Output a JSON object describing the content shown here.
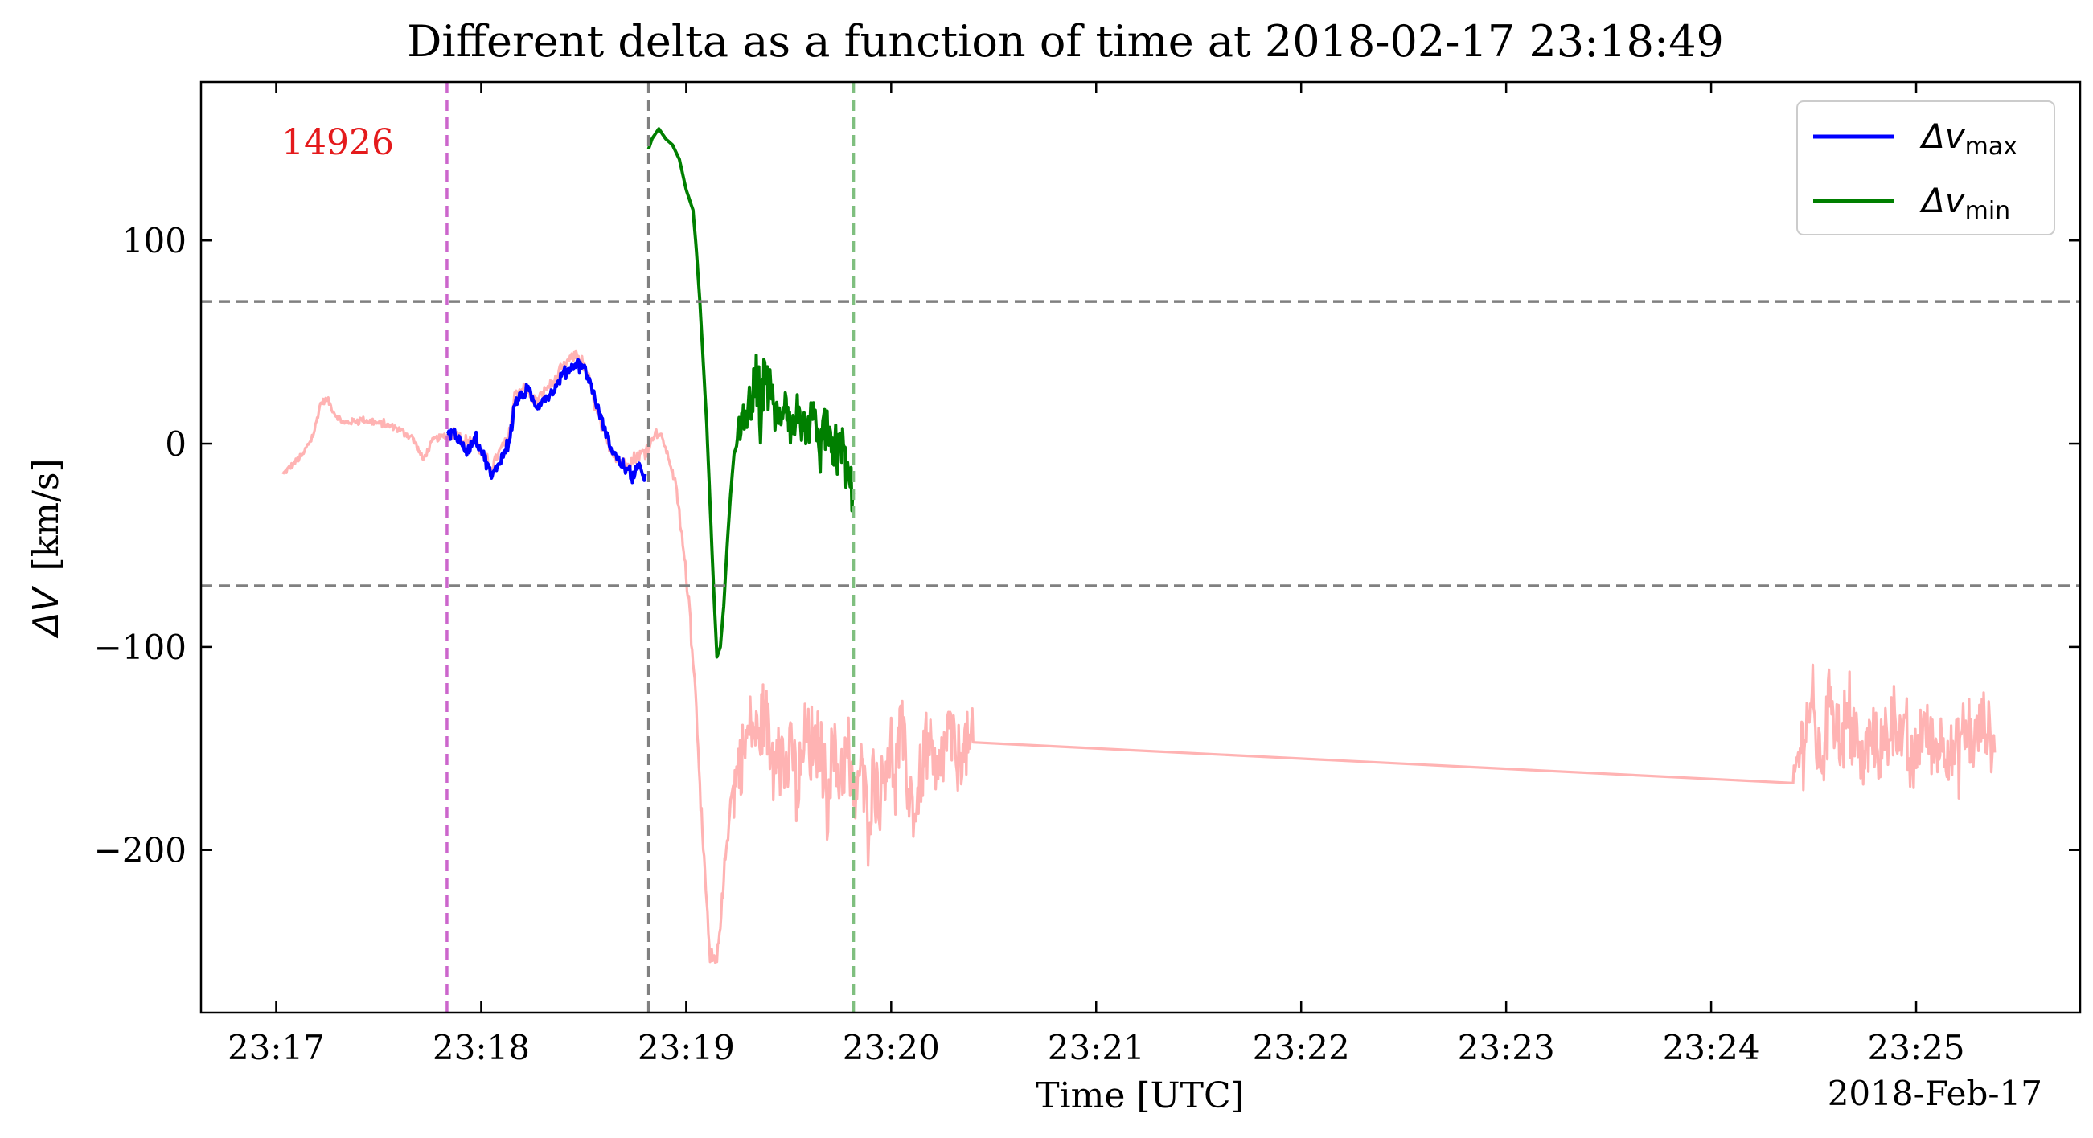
{
  "chart_data": {
    "type": "line",
    "title": "Different delta as a function of time at 2018-02-17 23:18:49",
    "xlabel": "Time [UTC]",
    "ylabel_symbol": "ΔV",
    "ylabel_unit": "[km/s]",
    "date_label": "2018-Feb-17",
    "annotation": {
      "text": "14926",
      "color": "#e41a1c"
    },
    "xlim": [
      "23:16:38",
      "23:25:48"
    ],
    "ylim": [
      -280,
      178
    ],
    "x_ticks": [
      "23:17",
      "23:18",
      "23:19",
      "23:20",
      "23:21",
      "23:22",
      "23:23",
      "23:24",
      "23:25"
    ],
    "y_ticks": [
      -200,
      -100,
      0,
      100
    ],
    "y_tick_labels": [
      "−200",
      "−100",
      "0",
      "100"
    ],
    "hlines": [
      {
        "y": 70,
        "color": "#808080"
      },
      {
        "y": -70,
        "color": "#808080"
      }
    ],
    "vlines": [
      {
        "x": "23:17:50",
        "color": "#cc66cc"
      },
      {
        "x": "23:18:49",
        "color": "#808080"
      },
      {
        "x": "23:19:49",
        "color": "#7fbf7f"
      }
    ],
    "legend": {
      "placement": "top-right",
      "entries": [
        {
          "base": "Δv",
          "sub": "max",
          "color": "#0000ff"
        },
        {
          "base": "Δv",
          "sub": "min",
          "color": "#007f00"
        }
      ]
    },
    "series": [
      {
        "key": "background",
        "color": "#ffb3b3",
        "points": [
          [
            "23:17:02",
            -15
          ],
          [
            "23:17:05",
            -10
          ],
          [
            "23:17:08",
            -5
          ],
          [
            "23:17:11",
            5
          ],
          [
            "23:17:13",
            20
          ],
          [
            "23:17:15",
            22
          ],
          [
            "23:17:17",
            15
          ],
          [
            "23:17:20",
            10
          ],
          [
            "23:17:25",
            12
          ],
          [
            "23:17:30",
            10
          ],
          [
            "23:17:35",
            8
          ],
          [
            "23:17:40",
            3
          ],
          [
            "23:17:43",
            -8
          ],
          [
            "23:17:46",
            2
          ],
          [
            "23:17:50",
            4
          ],
          [
            "23:17:53",
            5
          ],
          [
            "23:17:56",
            0
          ],
          [
            "23:17:58",
            3
          ],
          [
            "23:18:00",
            -5
          ],
          [
            "23:18:03",
            -12
          ],
          [
            "23:18:05",
            -5
          ],
          [
            "23:18:08",
            3
          ],
          [
            "23:18:10",
            25
          ],
          [
            "23:18:13",
            28
          ],
          [
            "23:18:16",
            20
          ],
          [
            "23:18:19",
            27
          ],
          [
            "23:18:22",
            32
          ],
          [
            "23:18:25",
            40
          ],
          [
            "23:18:28",
            44
          ],
          [
            "23:18:31",
            35
          ],
          [
            "23:18:34",
            15
          ],
          [
            "23:18:37",
            0
          ],
          [
            "23:18:40",
            -8
          ],
          [
            "23:18:43",
            -10
          ],
          [
            "23:18:46",
            -6
          ],
          [
            "23:18:49",
            -2
          ],
          [
            "23:18:51",
            6
          ],
          [
            "23:18:53",
            3
          ],
          [
            "23:18:55",
            -8
          ],
          [
            "23:18:57",
            -20
          ],
          [
            "23:18:59",
            -50
          ],
          [
            "23:19:01",
            -80
          ],
          [
            "23:19:03",
            -130
          ],
          [
            "23:19:05",
            -200
          ],
          [
            "23:19:07",
            -255
          ],
          [
            "23:19:09",
            -255
          ],
          [
            "23:19:11",
            -215
          ],
          [
            "23:19:13",
            -175
          ],
          [
            "23:19:15",
            -162
          ],
          [
            "23:19:17",
            -150
          ],
          [
            "23:19:19",
            -138
          ],
          [
            "23:19:21",
            -145
          ],
          [
            "23:19:23",
            -130
          ],
          [
            "23:19:25",
            -155
          ],
          [
            "23:19:27",
            -140
          ],
          [
            "23:19:29",
            -165
          ],
          [
            "23:19:31",
            -150
          ],
          [
            "23:19:33",
            -175
          ],
          [
            "23:19:35",
            -140
          ],
          [
            "23:19:37",
            -158
          ],
          [
            "23:19:39",
            -145
          ],
          [
            "23:19:41",
            -170
          ],
          [
            "23:19:43",
            -150
          ],
          [
            "23:19:45",
            -165
          ],
          [
            "23:19:47",
            -152
          ],
          [
            "23:19:49",
            -178
          ],
          [
            "23:19:51",
            -158
          ],
          [
            "23:19:53",
            -182
          ],
          [
            "23:19:55",
            -162
          ],
          [
            "23:19:57",
            -172
          ],
          [
            "23:19:59",
            -150
          ],
          [
            "23:20:01",
            -163
          ],
          [
            "23:20:03",
            -140
          ],
          [
            "23:20:05",
            -170
          ],
          [
            "23:20:07",
            -182
          ],
          [
            "23:20:09",
            -160
          ],
          [
            "23:20:11",
            -148
          ],
          [
            "23:20:13",
            -170
          ],
          [
            "23:20:15",
            -155
          ],
          [
            "23:20:17",
            -140
          ],
          [
            "23:20:19",
            -158
          ],
          [
            "23:20:21",
            -148
          ],
          [
            "23:20:23",
            -150
          ],
          [
            "23:20:24",
            -147
          ],
          [
            "23:24:24",
            -167
          ],
          [
            "23:24:26",
            -150
          ],
          [
            "23:24:29",
            -128
          ],
          [
            "23:24:32",
            -160
          ],
          [
            "23:24:35",
            -120
          ],
          [
            "23:24:38",
            -148
          ],
          [
            "23:24:41",
            -135
          ],
          [
            "23:24:44",
            -160
          ],
          [
            "23:24:47",
            -142
          ],
          [
            "23:24:50",
            -155
          ],
          [
            "23:24:53",
            -130
          ],
          [
            "23:24:56",
            -145
          ],
          [
            "23:24:59",
            -160
          ],
          [
            "23:25:02",
            -138
          ],
          [
            "23:25:05",
            -150
          ],
          [
            "23:25:08",
            -145
          ],
          [
            "23:25:11",
            -155
          ],
          [
            "23:25:14",
            -140
          ],
          [
            "23:25:17",
            -148
          ],
          [
            "23:25:20",
            -135
          ],
          [
            "23:25:23",
            -152
          ]
        ],
        "noise": [
          [
            "23:17:02",
            "23:17:50",
            2
          ],
          [
            "23:17:50",
            "23:18:49",
            3
          ],
          [
            "23:18:49",
            "23:18:58",
            2
          ],
          [
            "23:18:58",
            "23:19:14",
            5
          ],
          [
            "23:19:14",
            "23:20:24",
            22
          ],
          [
            "23:24:24",
            "23:25:24",
            20
          ]
        ]
      },
      {
        "key": "dv_max",
        "color": "#0000ff",
        "points": [
          [
            "23:17:50",
            5
          ],
          [
            "23:17:52",
            6
          ],
          [
            "23:17:54",
            0
          ],
          [
            "23:17:56",
            -4
          ],
          [
            "23:17:58",
            3
          ],
          [
            "23:18:00",
            -3
          ],
          [
            "23:18:02",
            -10
          ],
          [
            "23:18:03",
            -17
          ],
          [
            "23:18:05",
            -10
          ],
          [
            "23:18:08",
            0
          ],
          [
            "23:18:10",
            20
          ],
          [
            "23:18:12",
            24
          ],
          [
            "23:18:14",
            26
          ],
          [
            "23:18:16",
            18
          ],
          [
            "23:18:18",
            22
          ],
          [
            "23:18:20",
            24
          ],
          [
            "23:18:22",
            28
          ],
          [
            "23:18:24",
            35
          ],
          [
            "23:18:26",
            37
          ],
          [
            "23:18:28",
            40
          ],
          [
            "23:18:30",
            38
          ],
          [
            "23:18:32",
            30
          ],
          [
            "23:18:34",
            18
          ],
          [
            "23:18:36",
            8
          ],
          [
            "23:18:38",
            -2
          ],
          [
            "23:18:40",
            -8
          ],
          [
            "23:18:42",
            -12
          ],
          [
            "23:18:44",
            -16
          ],
          [
            "23:18:46",
            -12
          ],
          [
            "23:18:48",
            -15
          ]
        ],
        "noise": [
          [
            "23:17:50",
            "23:18:48",
            3
          ]
        ]
      },
      {
        "key": "dv_min",
        "color": "#007f00",
        "points": [
          [
            "23:18:49",
            145
          ],
          [
            "23:18:50",
            150
          ],
          [
            "23:18:52",
            155
          ],
          [
            "23:18:54",
            150
          ],
          [
            "23:18:56",
            147
          ],
          [
            "23:18:58",
            140
          ],
          [
            "23:19:00",
            125
          ],
          [
            "23:19:02",
            115
          ],
          [
            "23:19:03",
            95
          ],
          [
            "23:19:04",
            70
          ],
          [
            "23:19:05",
            40
          ],
          [
            "23:19:06",
            10
          ],
          [
            "23:19:07",
            -30
          ],
          [
            "23:19:08",
            -70
          ],
          [
            "23:19:09",
            -105
          ],
          [
            "23:19:10",
            -100
          ],
          [
            "23:19:11",
            -80
          ],
          [
            "23:19:12",
            -50
          ],
          [
            "23:19:13",
            -25
          ],
          [
            "23:19:14",
            -5
          ],
          [
            "23:19:16",
            5
          ],
          [
            "23:19:18",
            15
          ],
          [
            "23:19:20",
            28
          ],
          [
            "23:19:22",
            15
          ],
          [
            "23:19:23",
            40
          ],
          [
            "23:19:25",
            22
          ],
          [
            "23:19:27",
            10
          ],
          [
            "23:19:29",
            25
          ],
          [
            "23:19:31",
            5
          ],
          [
            "23:19:33",
            18
          ],
          [
            "23:19:35",
            0
          ],
          [
            "23:19:37",
            12
          ],
          [
            "23:19:39",
            -5
          ],
          [
            "23:19:41",
            8
          ],
          [
            "23:19:43",
            -10
          ],
          [
            "23:19:45",
            5
          ],
          [
            "23:19:47",
            -15
          ],
          [
            "23:19:49",
            -25
          ]
        ],
        "noise": [
          [
            "23:19:15",
            "23:19:49",
            14
          ]
        ]
      }
    ]
  }
}
